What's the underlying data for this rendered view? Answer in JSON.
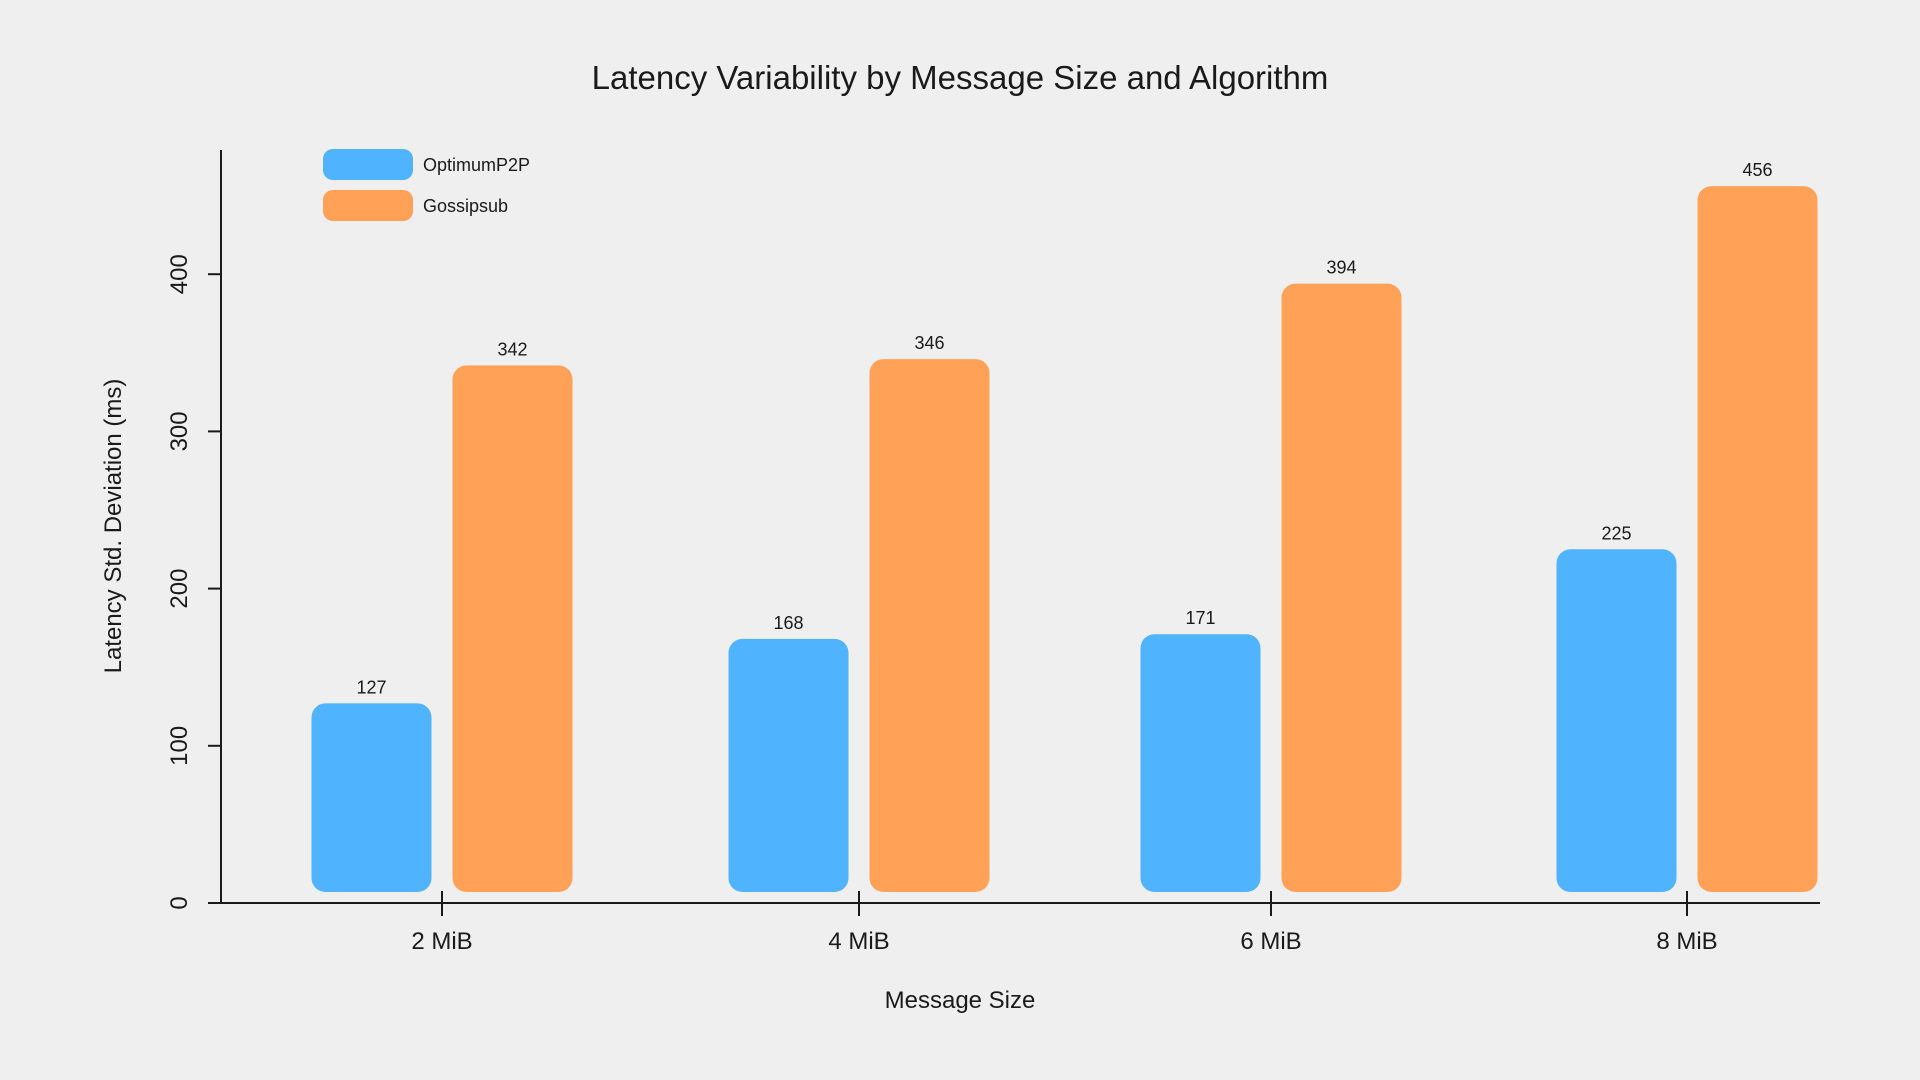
{
  "chart_data": {
    "type": "bar",
    "title": "Latency Variability by Message Size and Algorithm",
    "xlabel": "Message Size",
    "ylabel": "Latency Std. Deviation (ms)",
    "categories": [
      "2 MiB",
      "4 MiB",
      "6 MiB",
      "8 MiB"
    ],
    "series": [
      {
        "name": "OptimumP2P",
        "color": "#4fb3fd",
        "values": [
          127,
          168,
          171,
          225
        ]
      },
      {
        "name": "Gossipsub",
        "color": "#ffa257",
        "values": [
          342,
          346,
          394,
          456
        ]
      }
    ],
    "ylim": [
      0,
      480
    ],
    "yticks": [
      0,
      100,
      200,
      300,
      400
    ],
    "grid": false,
    "legend_position": "top-left"
  }
}
